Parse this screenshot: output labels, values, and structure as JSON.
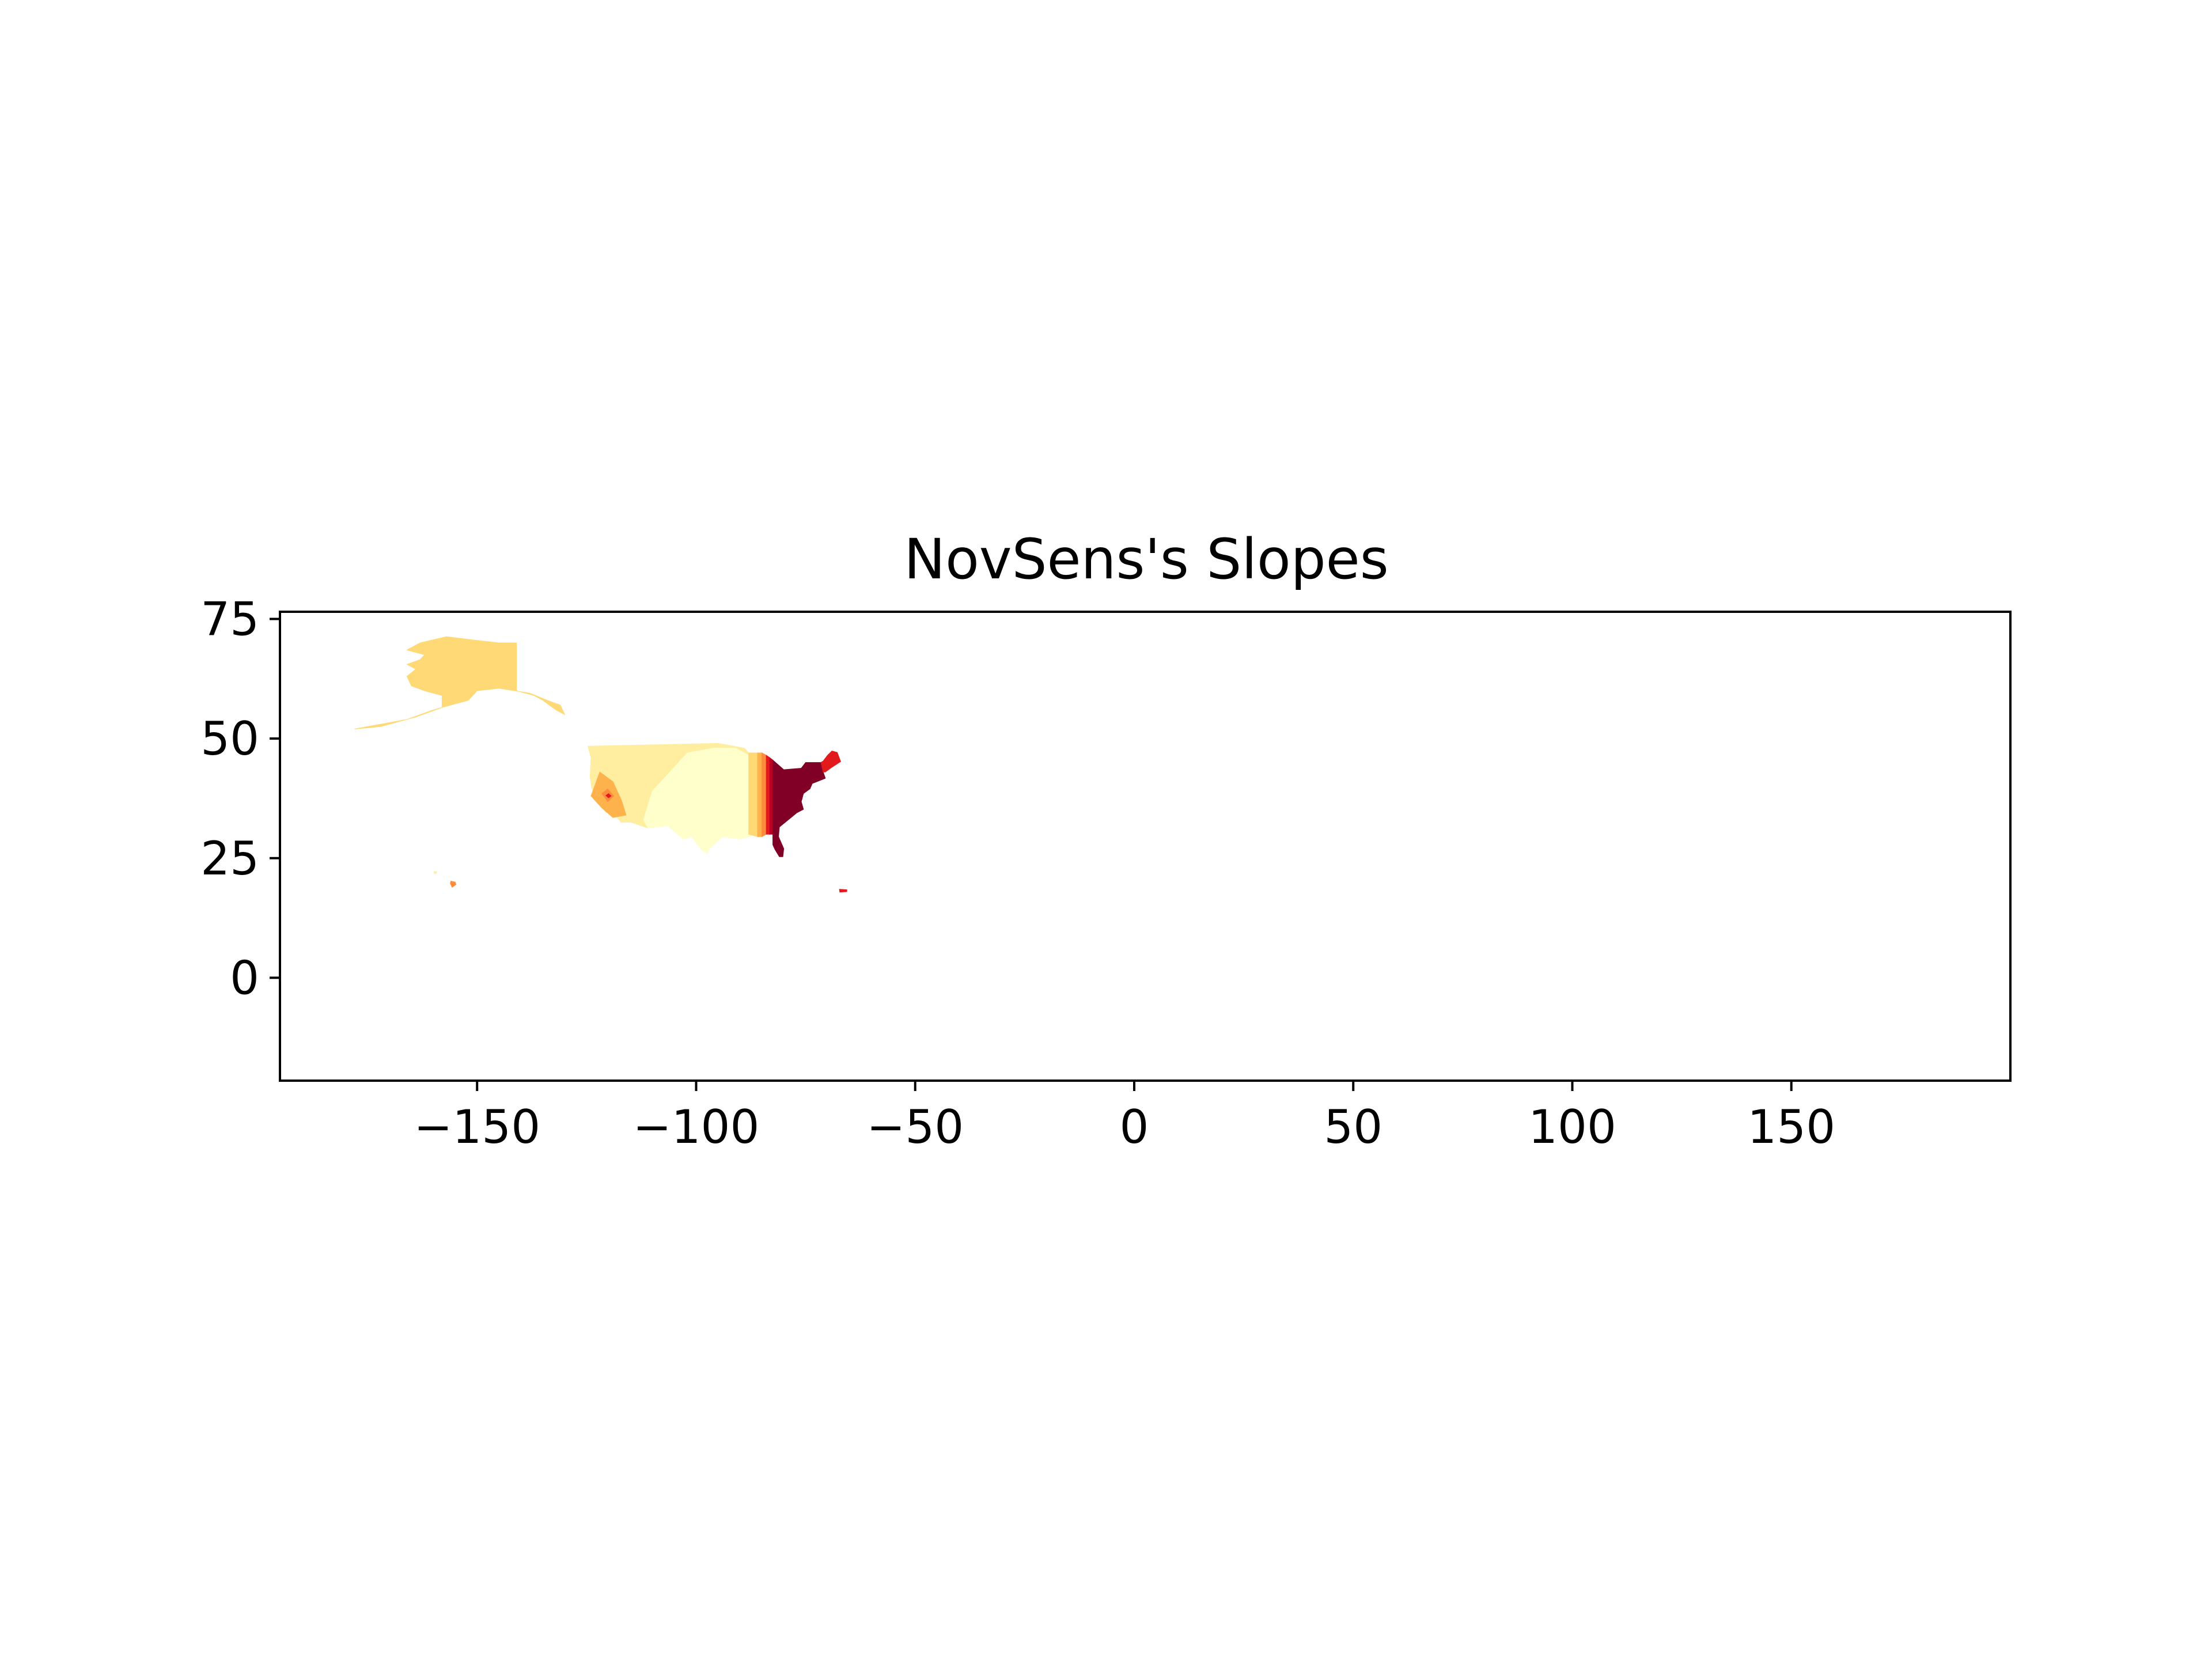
{
  "chart_data": {
    "type": "map",
    "title": "NovSens's Slopes",
    "xlabel": "",
    "ylabel": "",
    "xlim": [
      -195,
      200
    ],
    "ylim": [
      -21.5,
      76.5
    ],
    "x_ticks": [
      -150,
      -100,
      -50,
      0,
      50,
      100,
      150
    ],
    "x_tick_labels": [
      "−150",
      "−100",
      "−50",
      "0",
      "50",
      "100",
      "150"
    ],
    "y_ticks": [
      0,
      25,
      50,
      75
    ],
    "y_tick_labels": [
      "0",
      "25",
      "50",
      "75"
    ],
    "grid": false,
    "legend": "none",
    "colormap": "YlOrRd",
    "regions": [
      {
        "name": "alaska",
        "color": "#fed976",
        "coords": [
          [
            -141,
            70
          ],
          [
            -141,
            60
          ],
          [
            -137,
            59
          ],
          [
            -135,
            58
          ],
          [
            -132,
            56
          ],
          [
            -130,
            55
          ],
          [
            -131,
            57
          ],
          [
            -134,
            58
          ],
          [
            -138,
            59.5
          ],
          [
            -145,
            60.5
          ],
          [
            -150,
            60
          ],
          [
            -152,
            58
          ],
          [
            -156,
            57
          ],
          [
            -160,
            56
          ],
          [
            -163,
            55
          ],
          [
            -166,
            54
          ],
          [
            -172,
            53
          ],
          [
            -178,
            52
          ],
          [
            -172,
            52.5
          ],
          [
            -164,
            54.5
          ],
          [
            -158,
            56.5
          ],
          [
            -158,
            59
          ],
          [
            -162,
            60
          ],
          [
            -165,
            61
          ],
          [
            -166,
            63
          ],
          [
            -164,
            64.5
          ],
          [
            -166,
            65.5
          ],
          [
            -163,
            66.5
          ],
          [
            -162,
            67.5
          ],
          [
            -166,
            68.5
          ],
          [
            -163,
            70
          ],
          [
            -157,
            71.3
          ],
          [
            -150,
            70.5
          ],
          [
            -145,
            70
          ]
        ]
      },
      {
        "name": "conus-west",
        "color": "#ffeda0",
        "coords": [
          [
            -124.7,
            48.4
          ],
          [
            -95,
            49
          ],
          [
            -89,
            48
          ],
          [
            -87,
            46
          ],
          [
            -85,
            42
          ],
          [
            -84,
            38
          ],
          [
            -85,
            34
          ],
          [
            -87,
            30.5
          ],
          [
            -90,
            29
          ],
          [
            -94,
            29.5
          ],
          [
            -97,
            27
          ],
          [
            -97.5,
            26
          ],
          [
            -99,
            27
          ],
          [
            -101,
            29.5
          ],
          [
            -103,
            29
          ],
          [
            -106.5,
            31.8
          ],
          [
            -111,
            31.3
          ],
          [
            -114.8,
            32.5
          ],
          [
            -117.1,
            32.5
          ],
          [
            -118.5,
            34
          ],
          [
            -120.6,
            34.6
          ],
          [
            -122.5,
            37.5
          ],
          [
            -123.8,
            39.5
          ],
          [
            -124.2,
            42
          ],
          [
            -124,
            46
          ]
        ]
      },
      {
        "name": "interior-plains",
        "color": "#ffffcc",
        "coords": [
          [
            -112,
            33
          ],
          [
            -110,
            39
          ],
          [
            -106,
            43
          ],
          [
            -102,
            47
          ],
          [
            -96,
            48
          ],
          [
            -91,
            48
          ],
          [
            -86,
            45.5
          ],
          [
            -86,
            30
          ],
          [
            -90,
            29
          ],
          [
            -94,
            29.5
          ],
          [
            -97,
            27
          ],
          [
            -97.5,
            26
          ],
          [
            -99,
            27
          ],
          [
            -101,
            29.5
          ],
          [
            -103,
            29
          ],
          [
            -106.5,
            31.8
          ],
          [
            -111,
            31.3
          ]
        ]
      },
      {
        "name": "california-zone-outer",
        "color": "#feb24c",
        "coords": [
          [
            -124,
            38
          ],
          [
            -122,
            43
          ],
          [
            -119,
            41
          ],
          [
            -117,
            37
          ],
          [
            -116,
            34
          ],
          [
            -119,
            33.5
          ],
          [
            -121.5,
            35.5
          ]
        ]
      },
      {
        "name": "california-zone-inner",
        "color": "#fd8d3c",
        "coords": [
          [
            -121.5,
            38.5
          ],
          [
            -120.2,
            39.5
          ],
          [
            -118.8,
            38
          ],
          [
            -120.2,
            36.8
          ]
        ]
      },
      {
        "name": "california-zone-core",
        "color": "#e31a1c",
        "coords": [
          [
            -120.6,
            38.1
          ],
          [
            -120,
            38.5
          ],
          [
            -119.4,
            38
          ],
          [
            -120,
            37.6
          ]
        ]
      },
      {
        "name": "band-1",
        "color": "#fed976",
        "coords": [
          [
            -88,
            47
          ],
          [
            -86,
            47
          ],
          [
            -86,
            29.5
          ],
          [
            -88,
            30
          ]
        ]
      },
      {
        "name": "band-2",
        "color": "#feb24c",
        "coords": [
          [
            -86,
            47
          ],
          [
            -85,
            47
          ],
          [
            -85,
            29.5
          ],
          [
            -86,
            29.5
          ]
        ]
      },
      {
        "name": "band-3",
        "color": "#fd8d3c",
        "coords": [
          [
            -85,
            47
          ],
          [
            -84,
            46.5
          ],
          [
            -84,
            30
          ],
          [
            -85,
            29.5
          ]
        ]
      },
      {
        "name": "band-4",
        "color": "#e31a1c",
        "coords": [
          [
            -84,
            46.5
          ],
          [
            -83.2,
            46
          ],
          [
            -83.2,
            30
          ],
          [
            -84,
            30
          ]
        ]
      },
      {
        "name": "band-5",
        "color": "#bd0026",
        "coords": [
          [
            -83.2,
            46
          ],
          [
            -82.5,
            45.5
          ],
          [
            -82.5,
            30
          ],
          [
            -83.2,
            30
          ]
        ]
      },
      {
        "name": "east-coast",
        "color": "#800026",
        "coords": [
          [
            -82.5,
            45.5
          ],
          [
            -80,
            43.5
          ],
          [
            -76,
            43.8
          ],
          [
            -75,
            45
          ],
          [
            -71.5,
            45
          ],
          [
            -71,
            43
          ],
          [
            -70.5,
            41.7
          ],
          [
            -73.5,
            40.6
          ],
          [
            -74,
            39.5
          ],
          [
            -75.5,
            38.5
          ],
          [
            -76,
            36.8
          ],
          [
            -75.5,
            35.2
          ],
          [
            -77,
            34.5
          ],
          [
            -79,
            33
          ],
          [
            -81,
            31.5
          ],
          [
            -81.2,
            29.5
          ],
          [
            -80,
            27
          ],
          [
            -80.2,
            25.3
          ],
          [
            -81,
            25.3
          ],
          [
            -82,
            26.8
          ],
          [
            -82.5,
            27.8
          ],
          [
            -82.5,
            29
          ]
        ]
      },
      {
        "name": "new-england",
        "color": "#e31a1c",
        "coords": [
          [
            -71.5,
            45
          ],
          [
            -71,
            45.3
          ],
          [
            -70,
            46.5
          ],
          [
            -69,
            47.4
          ],
          [
            -67.8,
            47.1
          ],
          [
            -67,
            45.2
          ],
          [
            -69,
            44
          ],
          [
            -70.5,
            43
          ],
          [
            -71,
            43
          ]
        ]
      },
      {
        "name": "puerto-rico",
        "color": "#e31a1c",
        "coords": [
          [
            -67.3,
            18.5
          ],
          [
            -65.6,
            18.4
          ],
          [
            -65.6,
            18
          ],
          [
            -67.2,
            17.9
          ]
        ]
      },
      {
        "name": "hawaii-big-island",
        "color": "#fd8d3c",
        "coords": [
          [
            -156,
            20.2
          ],
          [
            -155,
            20
          ],
          [
            -154.8,
            19.5
          ],
          [
            -155.7,
            18.9
          ],
          [
            -156.1,
            19.7
          ]
        ]
      },
      {
        "name": "hawaii-islets",
        "color": "#ffeda0",
        "coords": [
          [
            -159.8,
            22.2
          ],
          [
            -159.3,
            22.2
          ],
          [
            -159.3,
            21.8
          ],
          [
            -159.8,
            21.8
          ]
        ]
      }
    ]
  }
}
